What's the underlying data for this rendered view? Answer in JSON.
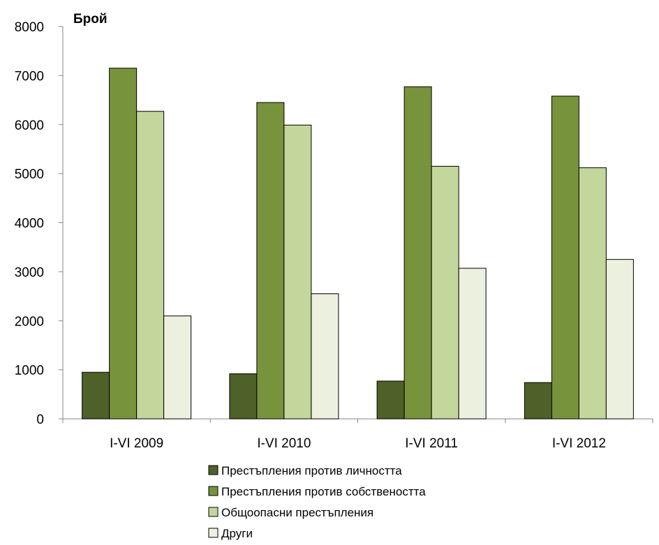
{
  "chart_data": {
    "type": "bar",
    "ylabel": "Брой",
    "ylim": [
      0,
      8000
    ],
    "yticks": [
      0,
      1000,
      2000,
      3000,
      4000,
      5000,
      6000,
      7000,
      8000
    ],
    "categories": [
      "I-VI 2009",
      "I-VI 2010",
      "I-VI 2011",
      "I-VI 2012"
    ],
    "series": [
      {
        "name": "Престъпления против личността",
        "color": "#4e6128",
        "values": [
          950,
          920,
          770,
          740
        ]
      },
      {
        "name": "Престъпления против собствеността",
        "color": "#77933c",
        "values": [
          7150,
          6450,
          6770,
          6580
        ]
      },
      {
        "name": "Общоопасни престъпления",
        "color": "#c3d69b",
        "values": [
          6270,
          5990,
          5150,
          5120
        ]
      },
      {
        "name": "Други",
        "color": "#ebf1de",
        "values": [
          2100,
          2550,
          3070,
          3250
        ]
      }
    ],
    "legend_position": "bottom",
    "grid": false
  }
}
